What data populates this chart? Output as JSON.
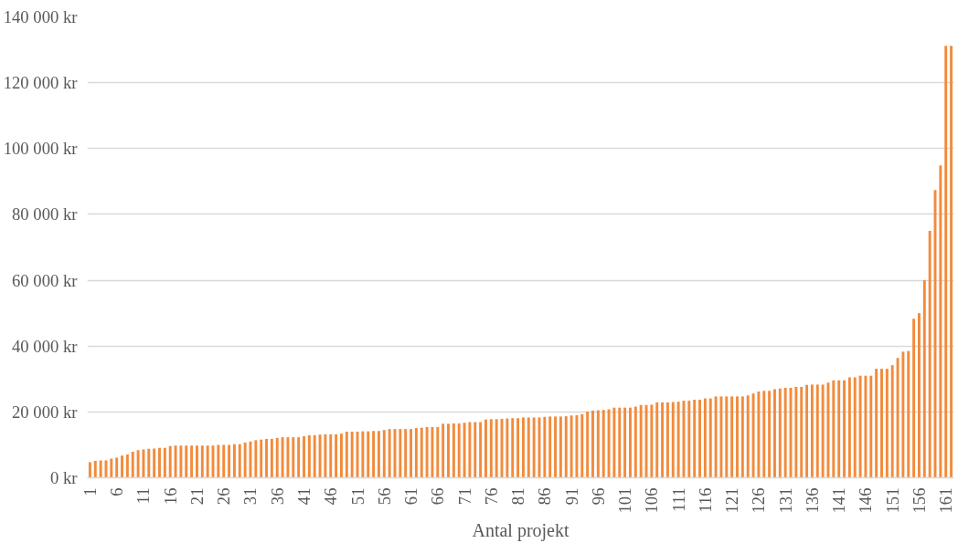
{
  "chart_data": {
    "type": "bar",
    "xlabel": "Antal projekt",
    "x": [
      1,
      2,
      3,
      4,
      5,
      6,
      7,
      8,
      9,
      10,
      11,
      12,
      13,
      14,
      15,
      16,
      17,
      18,
      19,
      20,
      21,
      22,
      23,
      24,
      25,
      26,
      27,
      28,
      29,
      30,
      31,
      32,
      33,
      34,
      35,
      36,
      37,
      38,
      39,
      40,
      41,
      42,
      43,
      44,
      45,
      46,
      47,
      48,
      49,
      50,
      51,
      52,
      53,
      54,
      55,
      56,
      57,
      58,
      59,
      60,
      61,
      62,
      63,
      64,
      65,
      66,
      67,
      68,
      69,
      70,
      71,
      72,
      73,
      74,
      75,
      76,
      77,
      78,
      79,
      80,
      81,
      82,
      83,
      84,
      85,
      86,
      87,
      88,
      89,
      90,
      91,
      92,
      93,
      94,
      95,
      96,
      97,
      98,
      99,
      100,
      101,
      102,
      103,
      104,
      105,
      106,
      107,
      108,
      109,
      110,
      111,
      112,
      113,
      114,
      115,
      116,
      117,
      118,
      119,
      120,
      121,
      122,
      123,
      124,
      125,
      126,
      127,
      128,
      129,
      130,
      131,
      132,
      133,
      134,
      135,
      136,
      137,
      138,
      139,
      140,
      141,
      142,
      143,
      144,
      145,
      146,
      147,
      148,
      149,
      150,
      151,
      152,
      153,
      154,
      155,
      156,
      157,
      158,
      159,
      160,
      161,
      162
    ],
    "values": [
      4700,
      5100,
      5300,
      5300,
      5800,
      6100,
      6700,
      7100,
      7900,
      8400,
      8600,
      8800,
      8900,
      9100,
      9100,
      9600,
      9800,
      9800,
      9800,
      9800,
      9800,
      9800,
      9800,
      9800,
      10000,
      10000,
      10000,
      10200,
      10200,
      10700,
      11000,
      11400,
      11600,
      11800,
      11800,
      12100,
      12300,
      12300,
      12300,
      12300,
      12600,
      12900,
      12900,
      13100,
      13200,
      13200,
      13200,
      13400,
      14000,
      14000,
      14000,
      14100,
      14100,
      14200,
      14200,
      14500,
      14800,
      14800,
      14800,
      14800,
      14800,
      15100,
      15200,
      15400,
      15400,
      15400,
      16400,
      16400,
      16500,
      16500,
      16700,
      16900,
      16900,
      16900,
      17700,
      17800,
      17800,
      17900,
      18000,
      18100,
      18100,
      18300,
      18300,
      18300,
      18300,
      18500,
      18600,
      18600,
      18600,
      18700,
      18900,
      19000,
      19300,
      20100,
      20400,
      20500,
      20600,
      20800,
      21300,
      21300,
      21300,
      21300,
      21600,
      22100,
      22100,
      22200,
      22900,
      22900,
      22900,
      23000,
      23100,
      23400,
      23400,
      23700,
      23700,
      24100,
      24100,
      24700,
      24700,
      24700,
      24700,
      24700,
      24700,
      25000,
      25600,
      26200,
      26400,
      26400,
      26900,
      27100,
      27300,
      27300,
      27600,
      27600,
      28200,
      28300,
      28300,
      28300,
      28900,
      29600,
      29600,
      29600,
      30500,
      30500,
      31000,
      31000,
      31000,
      33100,
      33100,
      33100,
      34200,
      36400,
      38300,
      38500,
      48300,
      50000,
      60000,
      75000,
      87400,
      94900,
      131200,
      131200
    ],
    "color": "#f28b3c",
    "xlim": [
      0.5,
      162.5
    ],
    "xticks": [
      1,
      6,
      11,
      16,
      21,
      26,
      31,
      36,
      41,
      46,
      51,
      56,
      61,
      66,
      71,
      76,
      81,
      86,
      91,
      96,
      101,
      106,
      111,
      116,
      121,
      126,
      131,
      136,
      141,
      146,
      151,
      156,
      161
    ],
    "ylim": [
      0,
      140000
    ],
    "yticks": [
      {
        "value": 0,
        "label": "0 kr"
      },
      {
        "value": 20000,
        "label": "20 000 kr"
      },
      {
        "value": 40000,
        "label": "40 000 kr"
      },
      {
        "value": 60000,
        "label": "60 000 kr"
      },
      {
        "value": 80000,
        "label": "80 000 kr"
      },
      {
        "value": 100000,
        "label": "100 000 kr"
      },
      {
        "value": 120000,
        "label": "120 000 kr"
      },
      {
        "value": 140000,
        "label": "140 000 kr"
      }
    ],
    "grid": "y"
  }
}
